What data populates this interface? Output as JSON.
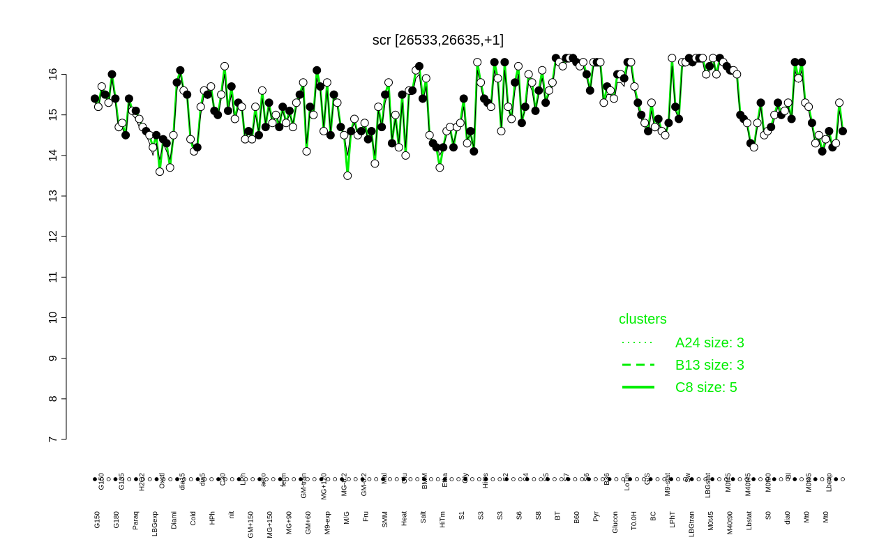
{
  "chart_data": {
    "type": "line",
    "title": "scr [26533,26635,+1]",
    "xlabel": "",
    "ylabel": "",
    "ylim": [
      7,
      16.8
    ],
    "yticks": [
      7,
      8,
      9,
      10,
      11,
      12,
      13,
      14,
      15,
      16
    ],
    "x_labels_top": [
      "G150",
      "G135",
      "H2O2",
      "Oxctl",
      "dia15",
      "dia5",
      "C30",
      "LPh",
      "aero",
      "ferm",
      "GM-tran",
      "MG+120",
      "MG-8.2",
      "GM-0.2",
      "Mal",
      "Glu",
      "BMM",
      "Etha",
      "Gly",
      "HiOs",
      "S2",
      "S4",
      "S5",
      "S7",
      "S6",
      "B36",
      "LoTm",
      "G/S",
      "M9-stat",
      "Sw",
      "LBGstat",
      "M0t45",
      "M40t45",
      "M0t90",
      "Bl",
      "M0t45",
      "Lbexp"
    ],
    "x_labels_bottom": [
      "G150",
      "G180",
      "Paraq",
      "LBGexp",
      "Diami",
      "Cold",
      "HPh",
      "nit",
      "GM+150",
      "MG+150",
      "MG+90",
      "GM+60",
      "M9-exp",
      "M/G",
      "Fru",
      "SMM",
      "Heat",
      "Salt",
      "HiTm",
      "S1",
      "S3",
      "S3",
      "S6",
      "S8",
      "BT",
      "B60",
      "Pyr",
      "Glucon",
      "T0.0H",
      "BC",
      "LPhT",
      "LBGtran",
      "M0t45",
      "M40t90",
      "Lbstat",
      "S0",
      "dia0",
      "Mt0",
      "Mt0"
    ],
    "legend": {
      "title": "clusters",
      "position": "right",
      "entries": [
        {
          "label": "A24 size: 3",
          "style": "dotted"
        },
        {
          "label": "B13 size: 3",
          "style": "dashed"
        },
        {
          "label": "C8 size: 5",
          "style": "solid"
        }
      ]
    },
    "series": [
      {
        "values": [
          15.4,
          15.2,
          15.7,
          15.5,
          15.3,
          16.0,
          15.4,
          14.7,
          14.8,
          14.5,
          15.4,
          15.1,
          15.1,
          14.9,
          14.7,
          14.6,
          14.5,
          14.2,
          14.5,
          13.6,
          14.4,
          14.3,
          13.7,
          14.5,
          15.8,
          16.1,
          15.6,
          15.5,
          14.4,
          14.1,
          14.2,
          15.2,
          15.6,
          15.5,
          15.7,
          15.1,
          15.0,
          15.5,
          16.2,
          15.1,
          15.7,
          14.9,
          15.3,
          15.2,
          14.4,
          14.6,
          14.4,
          15.2,
          14.5,
          15.6,
          14.7,
          15.3,
          14.8,
          15.0,
          14.7,
          15.2,
          14.8,
          15.1,
          14.7,
          15.3,
          15.5,
          15.8,
          14.1,
          15.2,
          15.0,
          16.1,
          15.7,
          14.6,
          15.8,
          14.5,
          15.5,
          15.3,
          14.7,
          14.5,
          13.5,
          14.6,
          14.9,
          14.5,
          14.6,
          14.8,
          14.4,
          14.6,
          13.8,
          15.2,
          14.7,
          15.5,
          15.8,
          14.3,
          15.0,
          14.2,
          15.5,
          14.0,
          15.6,
          15.6,
          16.1,
          16.2,
          15.4,
          15.9,
          14.5,
          14.3,
          14.2,
          13.7,
          14.2,
          14.6,
          14.7,
          14.2,
          14.7,
          14.8,
          15.4,
          14.3,
          14.6,
          14.1,
          16.3,
          15.8,
          15.4,
          15.3,
          15.2,
          16.3,
          15.9,
          14.6,
          16.3,
          15.2,
          14.9,
          15.8,
          16.2,
          14.8,
          15.2,
          16.0,
          15.8,
          15.1,
          15.6,
          16.1,
          15.3,
          15.6,
          15.8,
          16.4,
          16.3,
          16.2,
          16.4,
          16.4,
          16.4,
          16.3,
          16.2,
          16.3,
          16.0,
          15.6,
          16.3,
          16.3,
          16.3,
          15.3,
          15.7,
          15.6,
          15.4,
          16.0,
          16.0,
          15.9,
          16.3,
          16.3,
          15.7,
          15.3,
          15.0,
          14.8,
          14.6,
          15.3,
          14.7,
          14.9,
          14.6,
          14.5,
          14.8,
          16.4,
          15.2,
          14.9,
          16.3,
          16.3,
          16.4,
          16.3,
          16.4,
          16.4,
          16.4,
          16.0,
          16.2,
          16.4,
          16.0,
          16.4,
          16.3,
          16.2,
          16.1,
          16.1,
          16.0,
          15.0,
          14.9,
          14.8,
          14.3,
          14.2,
          14.8,
          15.3,
          14.5,
          14.6,
          14.7,
          15.0,
          15.3,
          15.0,
          15.1,
          15.3,
          14.9,
          16.3,
          15.9,
          16.3,
          15.3,
          15.2,
          14.8,
          14.3,
          14.5,
          14.1,
          14.4,
          14.6,
          14.2,
          14.3,
          15.3,
          14.6
        ]
      },
      {
        "values": [
          15.3,
          15.2,
          15.6,
          15.5,
          15.3,
          15.9,
          15.3,
          14.6,
          14.7,
          14.4,
          15.3,
          15.0,
          14.9,
          14.7,
          14.6,
          14.5,
          14.3,
          14.0,
          14.3,
          13.9,
          14.3,
          14.1,
          13.9,
          14.4,
          15.6,
          16.0,
          15.6,
          15.4,
          14.5,
          14.2,
          14.3,
          15.0,
          15.5,
          15.4,
          15.6,
          15.1,
          14.9,
          15.4,
          16.0,
          15.1,
          15.5,
          14.8,
          15.2,
          15.2,
          14.4,
          14.6,
          14.5,
          15.0,
          14.6,
          15.4,
          14.8,
          15.2,
          14.8,
          15.0,
          14.8,
          15.1,
          14.8,
          15.0,
          14.8,
          15.2,
          15.4,
          15.7,
          14.3,
          15.1,
          15.0,
          15.9,
          15.6,
          14.7,
          15.6,
          14.6,
          15.4,
          15.2,
          14.7,
          14.5,
          14.0,
          14.6,
          14.8,
          14.5,
          14.6,
          14.7,
          14.4,
          14.5,
          14.0,
          15.1,
          14.7,
          15.3,
          15.6,
          14.4,
          14.9,
          14.3,
          15.3,
          14.2,
          15.5,
          15.5,
          15.9,
          16.0,
          15.3,
          15.7,
          14.5,
          14.3,
          14.3,
          14.0,
          14.2,
          14.5,
          14.6,
          14.3,
          14.6,
          14.7,
          15.2,
          14.4,
          14.5,
          14.2,
          16.1,
          15.7,
          15.3,
          15.3,
          15.2,
          16.1,
          15.8,
          14.7,
          16.1,
          15.2,
          14.9,
          15.6,
          16.0,
          14.9,
          15.1,
          15.8,
          15.6,
          15.1,
          15.5,
          15.9,
          15.3,
          15.5,
          15.7,
          16.3,
          16.2,
          16.1,
          16.3,
          16.3,
          16.5,
          16.3,
          16.1,
          16.2,
          15.9,
          15.6,
          16.2,
          16.2,
          16.2,
          15.2,
          15.5,
          15.5,
          15.3,
          15.8,
          15.8,
          15.7,
          16.2,
          16.2,
          15.6,
          15.2,
          14.9,
          14.7,
          14.5,
          15.1,
          14.6,
          14.8,
          14.6,
          14.5,
          14.8,
          16.2,
          15.1,
          14.9,
          16.2,
          16.2,
          16.3,
          16.2,
          16.3,
          16.3,
          16.3,
          15.9,
          16.1,
          16.5,
          15.9,
          16.3,
          16.2,
          16.1,
          16.0,
          16.0,
          15.9,
          14.9,
          14.8,
          14.7,
          14.3,
          14.2,
          14.7,
          15.2,
          14.5,
          14.6,
          14.6,
          14.9,
          15.2,
          14.9,
          15.0,
          15.2,
          14.9,
          16.1,
          15.8,
          16.1,
          15.2,
          15.1,
          14.7,
          14.3,
          14.4,
          14.0,
          14.3,
          14.5,
          14.2,
          14.3,
          15.1,
          14.6
        ]
      }
    ]
  }
}
